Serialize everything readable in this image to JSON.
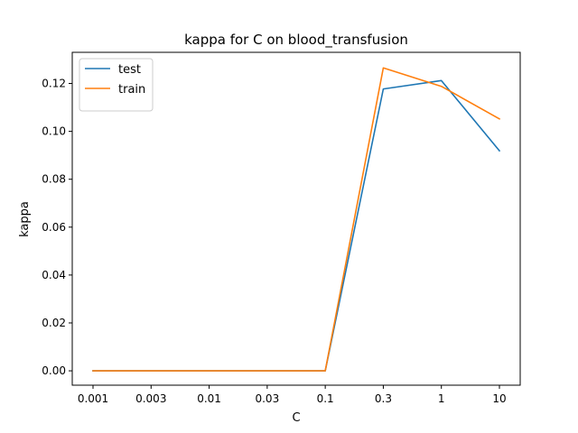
{
  "chart_data": {
    "type": "line",
    "title": "kappa for C on  blood_transfusion",
    "xlabel": "C",
    "ylabel": "kappa",
    "categories": [
      "0.001",
      "0.003",
      "0.01",
      "0.03",
      "0.1",
      "0.3",
      "1",
      "10"
    ],
    "ylim": [
      -0.006,
      0.133
    ],
    "yticks": [
      "0.00",
      "0.02",
      "0.04",
      "0.06",
      "0.08",
      "0.10",
      "0.12"
    ],
    "grid": false,
    "legend_position": "top-left",
    "series": [
      {
        "name": "test",
        "color": "#1f77b4",
        "values": [
          0.0,
          0.0,
          0.0,
          0.0,
          0.0,
          0.1177,
          0.1212,
          0.0919
        ]
      },
      {
        "name": "train",
        "color": "#ff7f0e",
        "values": [
          0.0,
          0.0,
          0.0,
          0.0,
          0.0,
          0.1265,
          0.1188,
          0.1052
        ]
      }
    ]
  }
}
